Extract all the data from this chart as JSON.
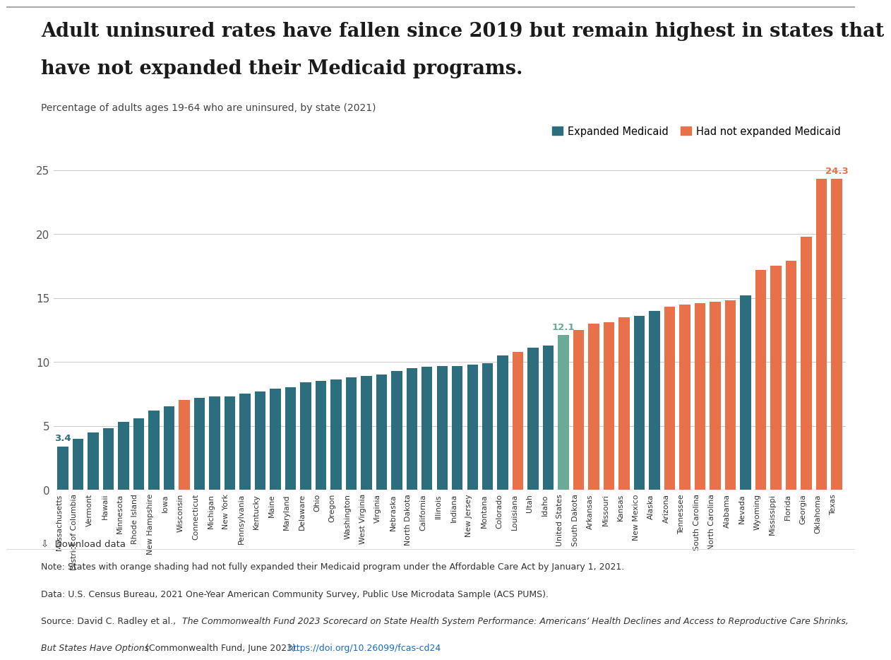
{
  "title_line1": "Adult uninsured rates have fallen since 2019 but remain highest in states that",
  "title_line2": "have not expanded their Medicaid programs.",
  "subtitle": "Percentage of adults ages 19-64 who are uninsured, by state (2021)",
  "legend_expanded": "Expanded Medicaid",
  "legend_not_expanded": "Had not expanded Medicaid",
  "color_expanded": "#2d6e7e",
  "color_not_expanded": "#e8714a",
  "color_us": "#6aaa96",
  "states": [
    "Massachusetts",
    "District of Columbia",
    "Vermont",
    "Hawaii",
    "Minnesota",
    "Rhode Island",
    "New Hampshire",
    "Iowa",
    "Wisconsin",
    "Connecticut",
    "Michigan",
    "New York",
    "Pennsylvania",
    "Kentucky",
    "Maine",
    "Maryland",
    "Delaware",
    "Ohio",
    "Oregon",
    "Washington",
    "West Virginia",
    "Virginia",
    "Nebraska",
    "North Dakota",
    "California",
    "Illinois",
    "Indiana",
    "New Jersey",
    "Montana",
    "Colorado",
    "Louisiana",
    "Utah",
    "Idaho",
    "United States",
    "South Dakota",
    "Arkansas",
    "Missouri",
    "Kansas",
    "New Mexico",
    "Alaska",
    "Arizona",
    "Tennessee",
    "South Carolina",
    "North Carolina",
    "Alabama",
    "Nevada",
    "Wyoming",
    "Mississippi",
    "Florida",
    "Georgia",
    "Oklahoma",
    "Texas"
  ],
  "values": [
    3.4,
    4.0,
    4.5,
    4.8,
    5.3,
    5.6,
    6.2,
    6.5,
    7.0,
    7.2,
    7.3,
    7.3,
    7.5,
    7.7,
    7.9,
    8.0,
    8.4,
    8.5,
    8.6,
    8.8,
    8.9,
    9.0,
    9.3,
    9.5,
    9.6,
    9.7,
    9.7,
    9.8,
    9.9,
    10.5,
    10.8,
    11.1,
    11.3,
    12.1,
    12.5,
    13.0,
    13.1,
    13.5,
    13.6,
    14.0,
    14.3,
    14.5,
    14.6,
    14.7,
    14.8,
    15.2,
    17.2,
    17.5,
    17.9,
    19.8,
    24.3,
    24.3
  ],
  "expanded": [
    true,
    true,
    true,
    true,
    true,
    true,
    true,
    true,
    false,
    true,
    true,
    true,
    true,
    true,
    true,
    true,
    true,
    true,
    true,
    true,
    true,
    true,
    true,
    true,
    true,
    true,
    true,
    true,
    true,
    true,
    false,
    true,
    true,
    false,
    false,
    false,
    false,
    false,
    true,
    true,
    false,
    false,
    false,
    false,
    false,
    true,
    false,
    false,
    false,
    false,
    false,
    false
  ],
  "us_index": 33,
  "label_first": "3.4",
  "label_us": "12.1",
  "label_last": "24.3",
  "ylim": [
    0,
    26
  ],
  "yticks": [
    0,
    5,
    10,
    15,
    20,
    25
  ],
  "background_color": "#ffffff",
  "note_text": "Note: States with orange shading had not fully expanded their Medicaid program under the Affordable Care Act by January 1, 2021.",
  "data_text": "Data: U.S. Census Bureau, 2021 One-Year American Community Survey, Public Use Microdata Sample (ACS PUMS).",
  "source_plain1": "Source: David C. Radley et al., ",
  "source_italic1": "The Commonwealth Fund 2023 Scorecard on State Health System Performance: Americans’ Health Declines and Access to Reproductive Care Shrinks,",
  "source_italic2": "But States Have Options",
  "source_plain2": " (Commonwealth Fund, June 2023). ",
  "source_link": "https://doi.org/10.26099/fcas-cd24"
}
